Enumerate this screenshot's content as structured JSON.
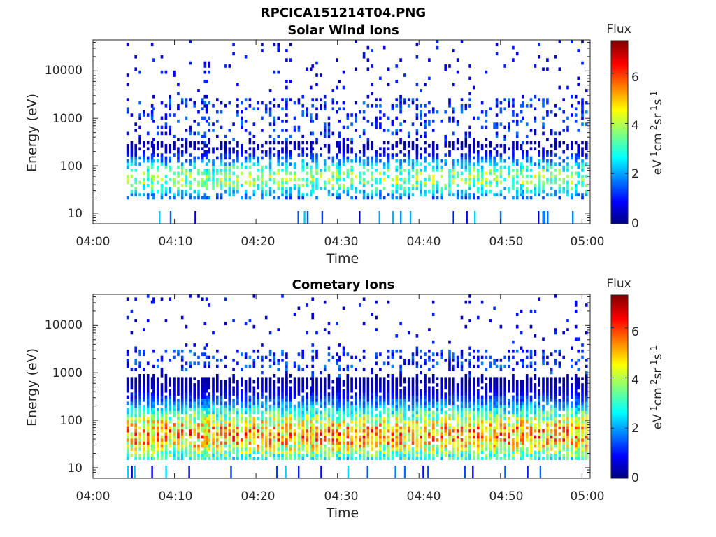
{
  "figure_title": "RPCICA151214T04.PNG",
  "colorbar": {
    "label": "Flux",
    "units_html": [
      "eV",
      "-1",
      "cm",
      "-2",
      "sr",
      "-1",
      "s",
      "-1"
    ],
    "range": [
      0,
      7.3
    ],
    "ticks": [
      "0",
      "2",
      "4",
      "6"
    ],
    "colormap": "jet"
  },
  "chart_data": [
    {
      "type": "heatmap",
      "title": "Solar Wind Ions",
      "xlabel": "Time",
      "ylabel": "Energy (eV)",
      "xlim_minutes": [
        0,
        61
      ],
      "x_ticks": [
        "04:00",
        "04:10",
        "04:20",
        "04:30",
        "04:40",
        "04:50",
        "05:00"
      ],
      "y_scale": "log",
      "ylim": [
        6,
        45000
      ],
      "y_ticks": [
        "10",
        "100",
        "1000",
        "10000"
      ],
      "scan_start_minutes": [
        4.5,
        7.7,
        11.2,
        14.0,
        17.5,
        21.0,
        24.0,
        27.2,
        30.5,
        33.5,
        37.0,
        40.0,
        43.5,
        46.5,
        49.8,
        53.0,
        56.5,
        59.8
      ],
      "core_energy_range_eV": [
        20,
        300
      ],
      "core_peak_flux": 4.8
    },
    {
      "type": "heatmap",
      "title": "Cometary Ions",
      "xlabel": "Time",
      "ylabel": "Energy (eV)",
      "xlim_minutes": [
        0,
        61
      ],
      "x_ticks": [
        "04:00",
        "04:10",
        "04:20",
        "04:30",
        "04:40",
        "04:50",
        "05:00"
      ],
      "y_scale": "log",
      "ylim": [
        6,
        45000
      ],
      "y_ticks": [
        "10",
        "100",
        "1000",
        "10000"
      ],
      "scan_start_minutes": [
        4.5,
        7.7,
        11.2,
        14.0,
        17.5,
        21.0,
        24.0,
        27.2,
        30.5,
        33.5,
        37.0,
        40.0,
        43.5,
        46.5,
        49.8,
        53.0,
        56.5,
        59.8
      ],
      "core_energy_range_eV": [
        15,
        800
      ],
      "core_peak_flux": 6.6
    }
  ]
}
